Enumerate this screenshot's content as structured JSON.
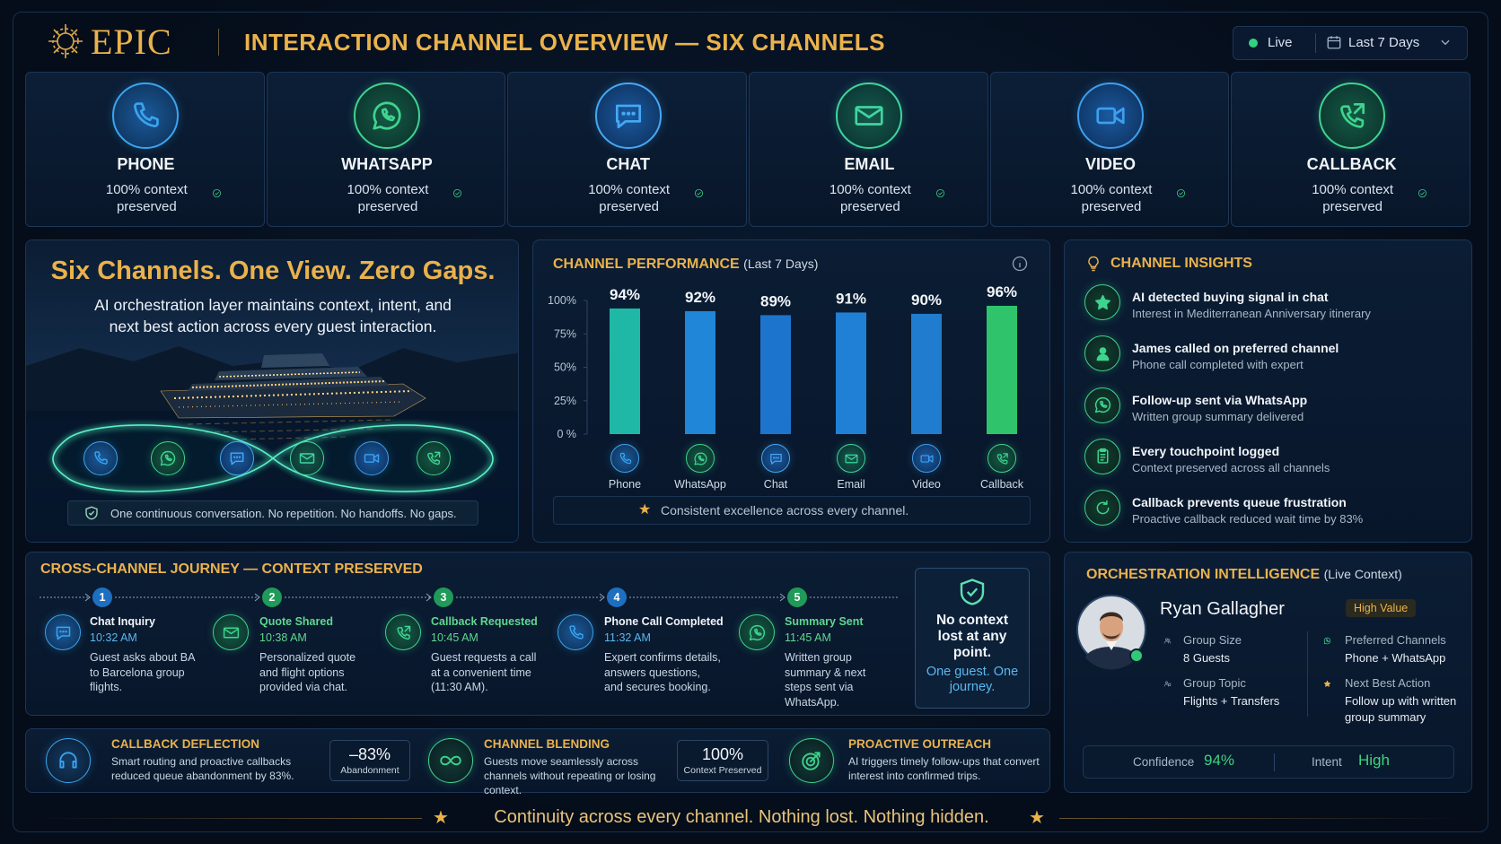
{
  "header": {
    "logo": "EPIC",
    "title": "INTERACTION CHANNEL OVERVIEW — SIX CHANNELS",
    "status": "Live",
    "range": "Last 7 Days"
  },
  "channels": [
    {
      "name": "PHONE",
      "note": "100% context preserved"
    },
    {
      "name": "WHATSAPP",
      "note": "100% context preserved"
    },
    {
      "name": "CHAT",
      "note": "100% context preserved"
    },
    {
      "name": "EMAIL",
      "note": "100% context preserved"
    },
    {
      "name": "VIDEO",
      "note": "100% context preserved"
    },
    {
      "name": "CALLBACK",
      "note": "100% context preserved"
    }
  ],
  "hero": {
    "title": "Six Channels. One View. Zero Gaps.",
    "subtitle": "AI orchestration layer maintains context, intent, and next best action across every guest interaction.",
    "footer": "One continuous conversation. No repetition. No handoffs. No gaps."
  },
  "chart_data": {
    "type": "bar",
    "title": "CHANNEL PERFORMANCE",
    "subtitle": "(Last 7 Days)",
    "categories": [
      "Phone",
      "WhatsApp",
      "Chat",
      "Email",
      "Video",
      "Callback"
    ],
    "values": [
      94,
      92,
      89,
      91,
      90,
      96
    ],
    "value_labels": [
      "94%",
      "92%",
      "89%",
      "91%",
      "90%",
      "96%"
    ],
    "colors": [
      "#1fb8a6",
      "#1f86d8",
      "#1d74cc",
      "#1f80d6",
      "#1f7ccf",
      "#2fc36c"
    ],
    "ylim": [
      0,
      100
    ],
    "yticks": [
      {
        "value": 0,
        "label": "0 %"
      },
      {
        "value": 25,
        "label": "25%"
      },
      {
        "value": 50,
        "label": "50%"
      },
      {
        "value": 75,
        "label": "75%"
      },
      {
        "value": 100,
        "label": "100%"
      }
    ],
    "grid": false,
    "footer": "Consistent excellence across every channel."
  },
  "insights": {
    "title": "CHANNEL INSIGHTS",
    "items": [
      {
        "title": "AI detected buying signal in chat",
        "detail": "Interest in Mediterranean Anniversary itinerary"
      },
      {
        "title": "James called on preferred channel",
        "detail": "Phone call completed with expert"
      },
      {
        "title": "Follow-up sent via WhatsApp",
        "detail": "Written group summary delivered"
      },
      {
        "title": "Every touchpoint logged",
        "detail": "Context preserved across all channels"
      },
      {
        "title": "Callback prevents queue frustration",
        "detail": "Proactive callback reduced wait time by 83%"
      }
    ]
  },
  "journey": {
    "title": "CROSS-CHANNEL JOURNEY — CONTEXT PRESERVED",
    "steps": [
      {
        "number": 1,
        "title": "Chat Inquiry",
        "time": "10:32 AM",
        "text": "Guest asks about BA to Barcelona group flights."
      },
      {
        "number": 2,
        "title": "Quote Shared",
        "time": "10:38 AM",
        "text": "Personalized quote and flight options provided via chat."
      },
      {
        "number": 3,
        "title": "Callback Requested",
        "time": "10:45 AM",
        "text": "Guest requests a call at a convenient time (11:30 AM)."
      },
      {
        "number": 4,
        "title": "Phone Call Completed",
        "time": "11:32 AM",
        "text": "Expert confirms details, answers questions, and secures booking."
      },
      {
        "number": 5,
        "title": "Summary Sent",
        "time": "11:45 AM",
        "text": "Written group summary & next steps sent via WhatsApp."
      }
    ],
    "badge": {
      "title": "No context lost at any point.",
      "subtitle": "One guest. One journey."
    }
  },
  "orchestration": {
    "title": "ORCHESTRATION INTELLIGENCE",
    "subtitle": "(Live Context)",
    "name": "Ryan Gallagher",
    "tag": "High Value",
    "fields": [
      {
        "label": "Group Size",
        "value": "8 Guests"
      },
      {
        "label": "Preferred Channels",
        "value": "Phone + WhatsApp"
      },
      {
        "label": "Group Topic",
        "value": "Flights + Transfers"
      },
      {
        "label": "Next Best Action",
        "value": "Follow up with written group summary"
      }
    ],
    "confidence_label": "Confidence",
    "confidence": "94%",
    "intent_label": "Intent",
    "intent": "High"
  },
  "metrics": [
    {
      "title": "CALLBACK DEFLECTION",
      "text": "Smart routing and proactive callbacks reduced queue abandonment by 83%.",
      "stat": "–83%",
      "stat_label": "Abandonment"
    },
    {
      "title": "CHANNEL BLENDING",
      "text": "Guests move seamlessly across channels without repeating or losing context.",
      "stat": "100%",
      "stat_label": "Context Preserved"
    },
    {
      "title": "PROACTIVE OUTREACH",
      "text": "AI triggers timely follow-ups that convert interest into confirmed trips."
    }
  ],
  "footer": "Continuity across every channel. Nothing lost. Nothing hidden."
}
